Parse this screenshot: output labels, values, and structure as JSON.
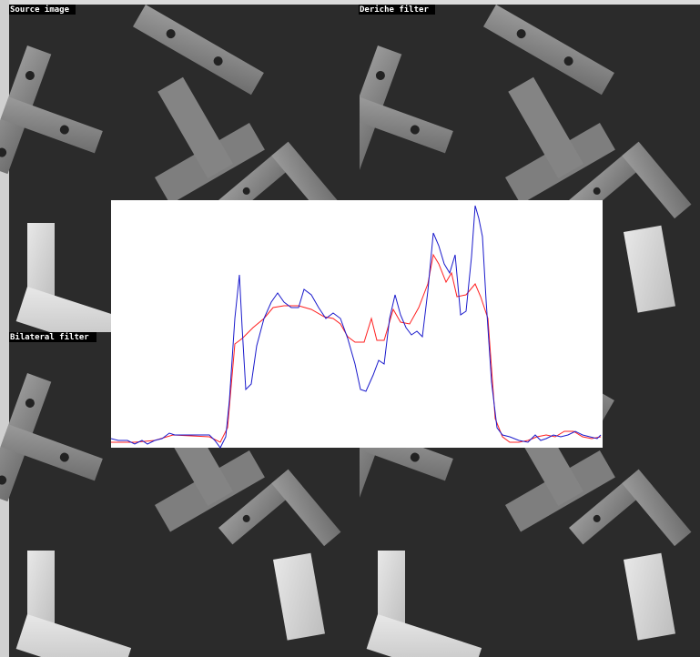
{
  "panels": [
    {
      "label": "Source image"
    },
    {
      "label": "Deriche filter"
    },
    {
      "label": "Bilateral filter"
    }
  ],
  "chart_data": {
    "type": "line",
    "xlim": [
      0,
      540
    ],
    "ylim": [
      0,
      272
    ],
    "series": [
      {
        "color": "#ff2020",
        "x": [
          0,
          26,
          48,
          68,
          108,
          120,
          128,
          136,
          144,
          156,
          168,
          178,
          190,
          206,
          220,
          234,
          244,
          252,
          260,
          268,
          278,
          286,
          292,
          300,
          310,
          318,
          328,
          338,
          348,
          354,
          360,
          368,
          374,
          380,
          390,
          400,
          406,
          414,
          422,
          430,
          438,
          448,
          458,
          468,
          478,
          488,
          498,
          508,
          518,
          528,
          538
        ],
        "values": [
          6,
          6,
          8,
          14,
          12,
          6,
          22,
          114,
          120,
          132,
          142,
          154,
          156,
          156,
          152,
          144,
          142,
          136,
          122,
          116,
          116,
          142,
          118,
          118,
          152,
          138,
          136,
          154,
          180,
          212,
          202,
          182,
          192,
          166,
          168,
          180,
          166,
          142,
          32,
          12,
          6,
          6,
          8,
          12,
          14,
          12,
          18,
          18,
          12,
          10,
          12
        ]
      },
      {
        "color": "#1a1acc",
        "x": [
          0,
          8,
          18,
          26,
          34,
          40,
          48,
          56,
          64,
          70,
          78,
          88,
          98,
          108,
          114,
          120,
          126,
          130,
          136,
          141,
          144,
          148,
          154,
          160,
          168,
          176,
          183,
          190,
          198,
          206,
          212,
          220,
          228,
          236,
          244,
          252,
          260,
          268,
          274,
          280,
          288,
          294,
          300,
          306,
          312,
          318,
          324,
          330,
          336,
          342,
          348,
          354,
          360,
          366,
          372,
          378,
          384,
          390,
          396,
          400,
          404,
          408,
          412,
          418,
          424,
          430,
          438,
          448,
          458,
          466,
          472,
          478,
          486,
          494,
          502,
          510,
          518,
          526,
          534,
          538
        ],
        "values": [
          10,
          8,
          8,
          4,
          8,
          4,
          8,
          10,
          16,
          14,
          14,
          14,
          14,
          14,
          8,
          0,
          12,
          52,
          142,
          190,
          132,
          64,
          70,
          112,
          142,
          160,
          170,
          160,
          154,
          154,
          174,
          168,
          154,
          142,
          148,
          142,
          120,
          92,
          64,
          62,
          80,
          96,
          92,
          142,
          168,
          146,
          132,
          124,
          128,
          122,
          172,
          236,
          222,
          202,
          192,
          212,
          146,
          150,
          210,
          266,
          252,
          232,
          162,
          72,
          22,
          14,
          12,
          8,
          6,
          14,
          8,
          10,
          14,
          12,
          14,
          18,
          14,
          12,
          10,
          14
        ]
      }
    ]
  }
}
